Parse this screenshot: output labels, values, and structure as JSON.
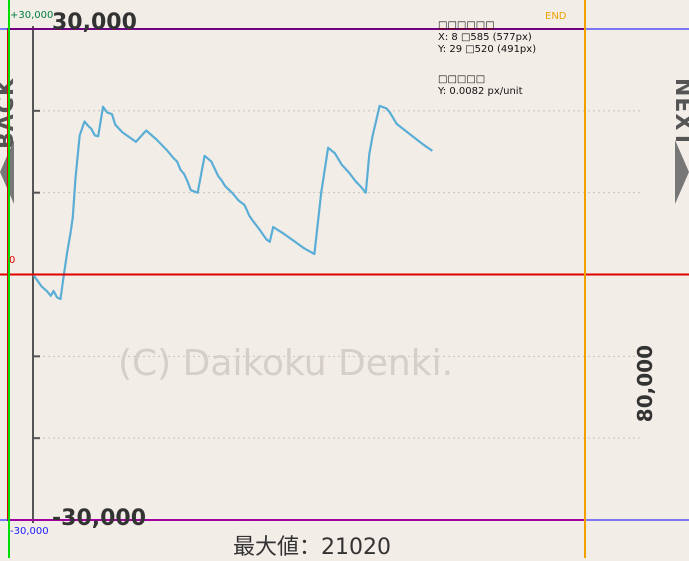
{
  "chart_data": {
    "type": "line",
    "y_top_label": "30,000",
    "y_bottom_label": "-30,000",
    "x_max_label": "80,000",
    "ylim": [
      -30000,
      30000
    ],
    "xlim": [
      0,
      80000
    ],
    "grid": true,
    "x": [
      0,
      1300,
      2000,
      2600,
      3000,
      3500,
      4000,
      4500,
      5000,
      5500,
      5800,
      6000,
      6200,
      6800,
      7500,
      8000,
      8500,
      9000,
      9500,
      10200,
      10800,
      11500,
      12000,
      13000,
      14000,
      15000,
      16500,
      18000,
      19500,
      20500,
      21000,
      21500,
      22000,
      22500,
      23000,
      24000,
      25000,
      26000,
      27000,
      27500,
      28000,
      29000,
      30000,
      30800,
      31200,
      31500,
      32000,
      33000,
      34000,
      34500,
      35000,
      36500,
      38000,
      39500,
      41000,
      42000,
      43000,
      44000,
      45000,
      46000,
      47000,
      47800,
      48500,
      49000,
      49500,
      50500,
      51500,
      52000,
      53000,
      55000,
      57000,
      58200
    ],
    "y": [
      0,
      -1500,
      -2000,
      -2600,
      -2000,
      -2800,
      -3000,
      0,
      2800,
      5200,
      7000,
      9500,
      11800,
      17000,
      18700,
      18200,
      17800,
      17000,
      16900,
      20500,
      19800,
      19600,
      18300,
      17400,
      16800,
      16200,
      17600,
      16500,
      15200,
      14200,
      13800,
      12800,
      12300,
      11400,
      10300,
      10000,
      14500,
      13800,
      12000,
      11500,
      10800,
      10000,
      9000,
      8500,
      7800,
      7200,
      6600,
      5500,
      4300,
      4000,
      5800,
      5000,
      4100,
      3200,
      2500,
      10000,
      15500,
      14800,
      13400,
      12500,
      11400,
      10700,
      10000,
      14700,
      17000,
      20600,
      20300,
      19800,
      18400,
      17100,
      15800,
      15100
    ]
  },
  "labels": {
    "watermark": "(C) Daikoku Denki.",
    "max_text": "最大値：21020",
    "back": "BACK",
    "next": "NEXT"
  },
  "debug": {
    "top_value": "+30,000",
    "bottom_value": "-30,000",
    "zero": "0",
    "end": "END",
    "info_x_title": "□□□□□□",
    "info_x": "X: 8 □585 (577px)",
    "info_y": "Y: 29 □520 (491px)",
    "info_scale_title": "□□□□□",
    "info_scale": "Y: 0.0082 px/unit"
  },
  "colors": {
    "background": "#f3ede8",
    "line": "#5aaed6",
    "grid": "#c8c2bc",
    "axis": "#555555",
    "guide_green": "#00dd00",
    "guide_red": "#e00000",
    "guide_blue": "#0000ff",
    "guide_orange": "#f0a000",
    "guide_purple": "#a000a0"
  }
}
